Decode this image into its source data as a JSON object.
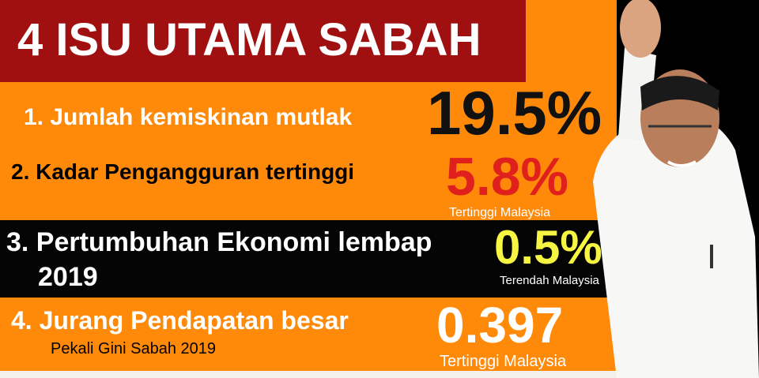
{
  "title": "4 ISU UTAMA SABAH",
  "issues": [
    {
      "label": "1. Jumlah kemiskinan mutlak",
      "value": "19.5%",
      "value_color": "#111111"
    },
    {
      "label": "2. Kadar Pengangguran tertinggi",
      "value": "5.8%",
      "note": "Tertinggi Malaysia",
      "value_color": "#e0201c"
    },
    {
      "label": "3. Pertumbuhan Ekonomi lembap",
      "label_line2": "2019",
      "value": "0.5%",
      "note": "Terendah Malaysia",
      "value_color": "#f5f542"
    },
    {
      "label": "4. Jurang Pendapatan besar",
      "sublabel": "Pekali Gini Sabah 2019",
      "value": "0.397",
      "note": "Tertinggi Malaysia",
      "value_color": "#ffffff"
    }
  ],
  "colors": {
    "orange": "#ff8a0a",
    "title_red": "#a01010",
    "black": "#050505"
  }
}
